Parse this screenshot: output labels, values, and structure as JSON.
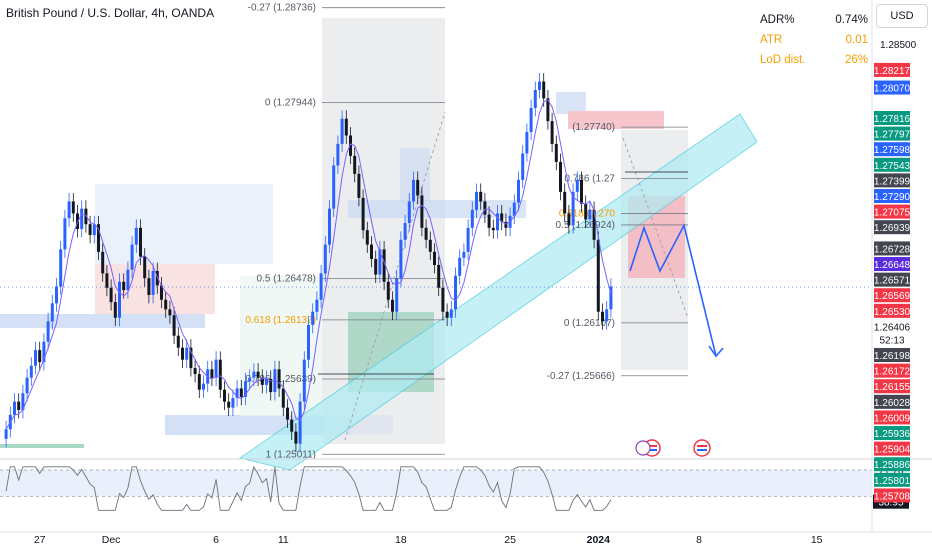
{
  "header": {
    "title": "British Pound / U.S. Dollar, 4h, OANDA"
  },
  "currency_button": "USD",
  "stats": [
    {
      "label": "ADR%",
      "value": "0.74%",
      "color": "#131722"
    },
    {
      "label": "ATR",
      "value": "0.01",
      "color": "#f59d00"
    },
    {
      "label": "LoD dist.",
      "value": "26%",
      "color": "#f59d00"
    }
  ],
  "colors": {
    "up": "#2962ff",
    "down": "#131722",
    "ma": "#7b61ff",
    "channel": "#4dd0e1",
    "fib_line": "#787b86",
    "projection": "#2962ff",
    "red_label": "#f23645",
    "green_label": "#089981",
    "blue_label": "#2962ff",
    "dark_label": "#434651"
  },
  "price_axis": {
    "top_tick": "1.28500",
    "labels": [
      {
        "text": "1.28217",
        "price": 1.28217,
        "kind": "red"
      },
      {
        "text": "1.28070",
        "price": 1.2807,
        "kind": "blue"
      },
      {
        "text": "1.27816",
        "price": 1.27816,
        "kind": "green"
      },
      {
        "text": "1.27797",
        "price": 1.27797,
        "kind": "green"
      },
      {
        "text": "1.27598",
        "price": 1.27598,
        "kind": "blue"
      },
      {
        "text": "1.27543",
        "price": 1.27543,
        "kind": "green"
      },
      {
        "text": "1.27399",
        "price": 1.27399,
        "kind": "dark"
      },
      {
        "text": "1.27290",
        "price": 1.2729,
        "kind": "blue"
      },
      {
        "text": "1.27075",
        "price": 1.27075,
        "kind": "red"
      },
      {
        "text": "1.26939",
        "price": 1.26939,
        "kind": "dark"
      },
      {
        "text": "1.26728",
        "price": 1.26728,
        "kind": "dark"
      },
      {
        "text": "1.26648",
        "price": 1.26648,
        "kind": "purple"
      },
      {
        "text": "1.26571",
        "price": 1.26571,
        "kind": "dark"
      },
      {
        "text": "1.26569",
        "price": 1.26569,
        "kind": "red"
      },
      {
        "text": "1.26530",
        "price": 1.2653,
        "kind": "red"
      },
      {
        "text": "1.26406",
        "price": 1.26406,
        "kind": "current"
      },
      {
        "text": "52:13",
        "price": 1.26406,
        "kind": "countdown"
      },
      {
        "text": "1.26198",
        "price": 1.26198,
        "kind": "dark"
      },
      {
        "text": "1.26172",
        "price": 1.26172,
        "kind": "red"
      },
      {
        "text": "1.26155",
        "price": 1.26155,
        "kind": "red"
      },
      {
        "text": "1.26028",
        "price": 1.26028,
        "kind": "dark"
      },
      {
        "text": "1.26009",
        "price": 1.26009,
        "kind": "red"
      },
      {
        "text": "1.25936",
        "price": 1.25936,
        "kind": "green"
      },
      {
        "text": "1.25904",
        "price": 1.25904,
        "kind": "red"
      },
      {
        "text": "1.25886",
        "price": 1.25886,
        "kind": "green"
      },
      {
        "text": "1.25801",
        "price": 1.25801,
        "kind": "green"
      },
      {
        "text": "1.25708",
        "price": 1.25708,
        "kind": "red"
      }
    ]
  },
  "time_axis": [
    {
      "label": "27",
      "bar": 8
    },
    {
      "label": "Dec",
      "bar": 25
    },
    {
      "label": "6",
      "bar": 50
    },
    {
      "label": "11",
      "bar": 66
    },
    {
      "label": "18",
      "bar": 94
    },
    {
      "label": "25",
      "bar": 120
    },
    {
      "label": "2024",
      "bar": 141,
      "bold": true
    },
    {
      "label": "8",
      "bar": 165
    },
    {
      "label": "15",
      "bar": 193
    }
  ],
  "fib_left": [
    {
      "text": "-0.27 (1.28736)",
      "price": 1.28736
    },
    {
      "text": "0 (1.27944)",
      "price": 1.27944
    },
    {
      "text": "0.5 (1.26478)",
      "price": 1.26478
    },
    {
      "text": "0.618 (1.26132)",
      "price": 1.26132,
      "highlight": true
    },
    {
      "text": "0.786 (1.25639)",
      "price": 1.25639
    },
    {
      "text": "1 (1.25011)",
      "price": 1.25011
    }
  ],
  "fib_right": [
    {
      "text": "(1.27740)",
      "price": 1.2774
    },
    {
      "text": "0.786 (1.27",
      "price": 1.2731
    },
    {
      "text": "0.618 (1.270",
      "price": 1.2702,
      "highlight": true
    },
    {
      "text": "0.5 (1.26924)",
      "price": 1.26924
    },
    {
      "text": "0 (1.26107)",
      "price": 1.26107
    },
    {
      "text": "-0.27 (1.25666)",
      "price": 1.25666
    }
  ],
  "rsi": {
    "labels": [
      {
        "text": "71.70",
        "value": 71.7
      },
      {
        "text": "44.37",
        "value": 44.37
      },
      {
        "text": "38.95",
        "value": 38.95,
        "boxed": true
      }
    ]
  },
  "chart_data": {
    "type": "candlestick",
    "title": "British Pound / U.S. Dollar, 4h, OANDA",
    "ylim": [
      1.2498,
      1.2855
    ],
    "note": "one value per 4h bar, read approximately from the candles",
    "close": [
      1.2522,
      1.2534,
      1.2545,
      1.2538,
      1.2552,
      1.2565,
      1.2575,
      1.2588,
      1.2578,
      1.2595,
      1.2612,
      1.2627,
      1.2641,
      1.2672,
      1.2698,
      1.2712,
      1.2702,
      1.2689,
      1.2706,
      1.2693,
      1.2684,
      1.2693,
      1.267,
      1.2652,
      1.264,
      1.2628,
      1.2615,
      1.2645,
      1.2638,
      1.2655,
      1.2676,
      1.269,
      1.2666,
      1.2648,
      1.2634,
      1.2654,
      1.2642,
      1.263,
      1.2622,
      1.2617,
      1.26,
      1.259,
      1.258,
      1.259,
      1.2573,
      1.2568,
      1.2555,
      1.256,
      1.2572,
      1.2565,
      1.258,
      1.2555,
      1.2545,
      1.254,
      1.2548,
      1.2556,
      1.2549,
      1.2562,
      1.2565,
      1.257,
      1.2565,
      1.2559,
      1.2564,
      1.2553,
      1.2572,
      1.2556,
      1.254,
      1.253,
      1.252,
      1.251,
      1.2545,
      1.258,
      1.2609,
      1.262,
      1.263,
      1.2652,
      1.2676,
      1.2706,
      1.2742,
      1.276,
      1.2781,
      1.2767,
      1.275,
      1.2735,
      1.2715,
      1.2688,
      1.2676,
      1.2664,
      1.2651,
      1.2672,
      1.2645,
      1.263,
      1.262,
      1.2648,
      1.268,
      1.2694,
      1.2712,
      1.273,
      1.2717,
      1.269,
      1.268,
      1.267,
      1.2659,
      1.264,
      1.262,
      1.2615,
      1.2622,
      1.265,
      1.2665,
      1.267,
      1.269,
      1.2705,
      1.272,
      1.2712,
      1.2701,
      1.269,
      1.2688,
      1.2702,
      1.2695,
      1.269,
      1.27,
      1.2711,
      1.273,
      1.2752,
      1.277,
      1.279,
      1.2805,
      1.2812,
      1.2798,
      1.2779,
      1.276,
      1.2745,
      1.272,
      1.2702,
      1.2692,
      1.272,
      1.273,
      1.271,
      1.2697,
      1.2705,
      1.268,
      1.262,
      1.2612,
      1.2622,
      1.2641
    ],
    "series": [
      {
        "name": "",
        "kind": "moving-average"
      }
    ],
    "projection": [
      1.2654,
      1.269,
      1.2654,
      1.2692,
      1.2583
    ]
  }
}
